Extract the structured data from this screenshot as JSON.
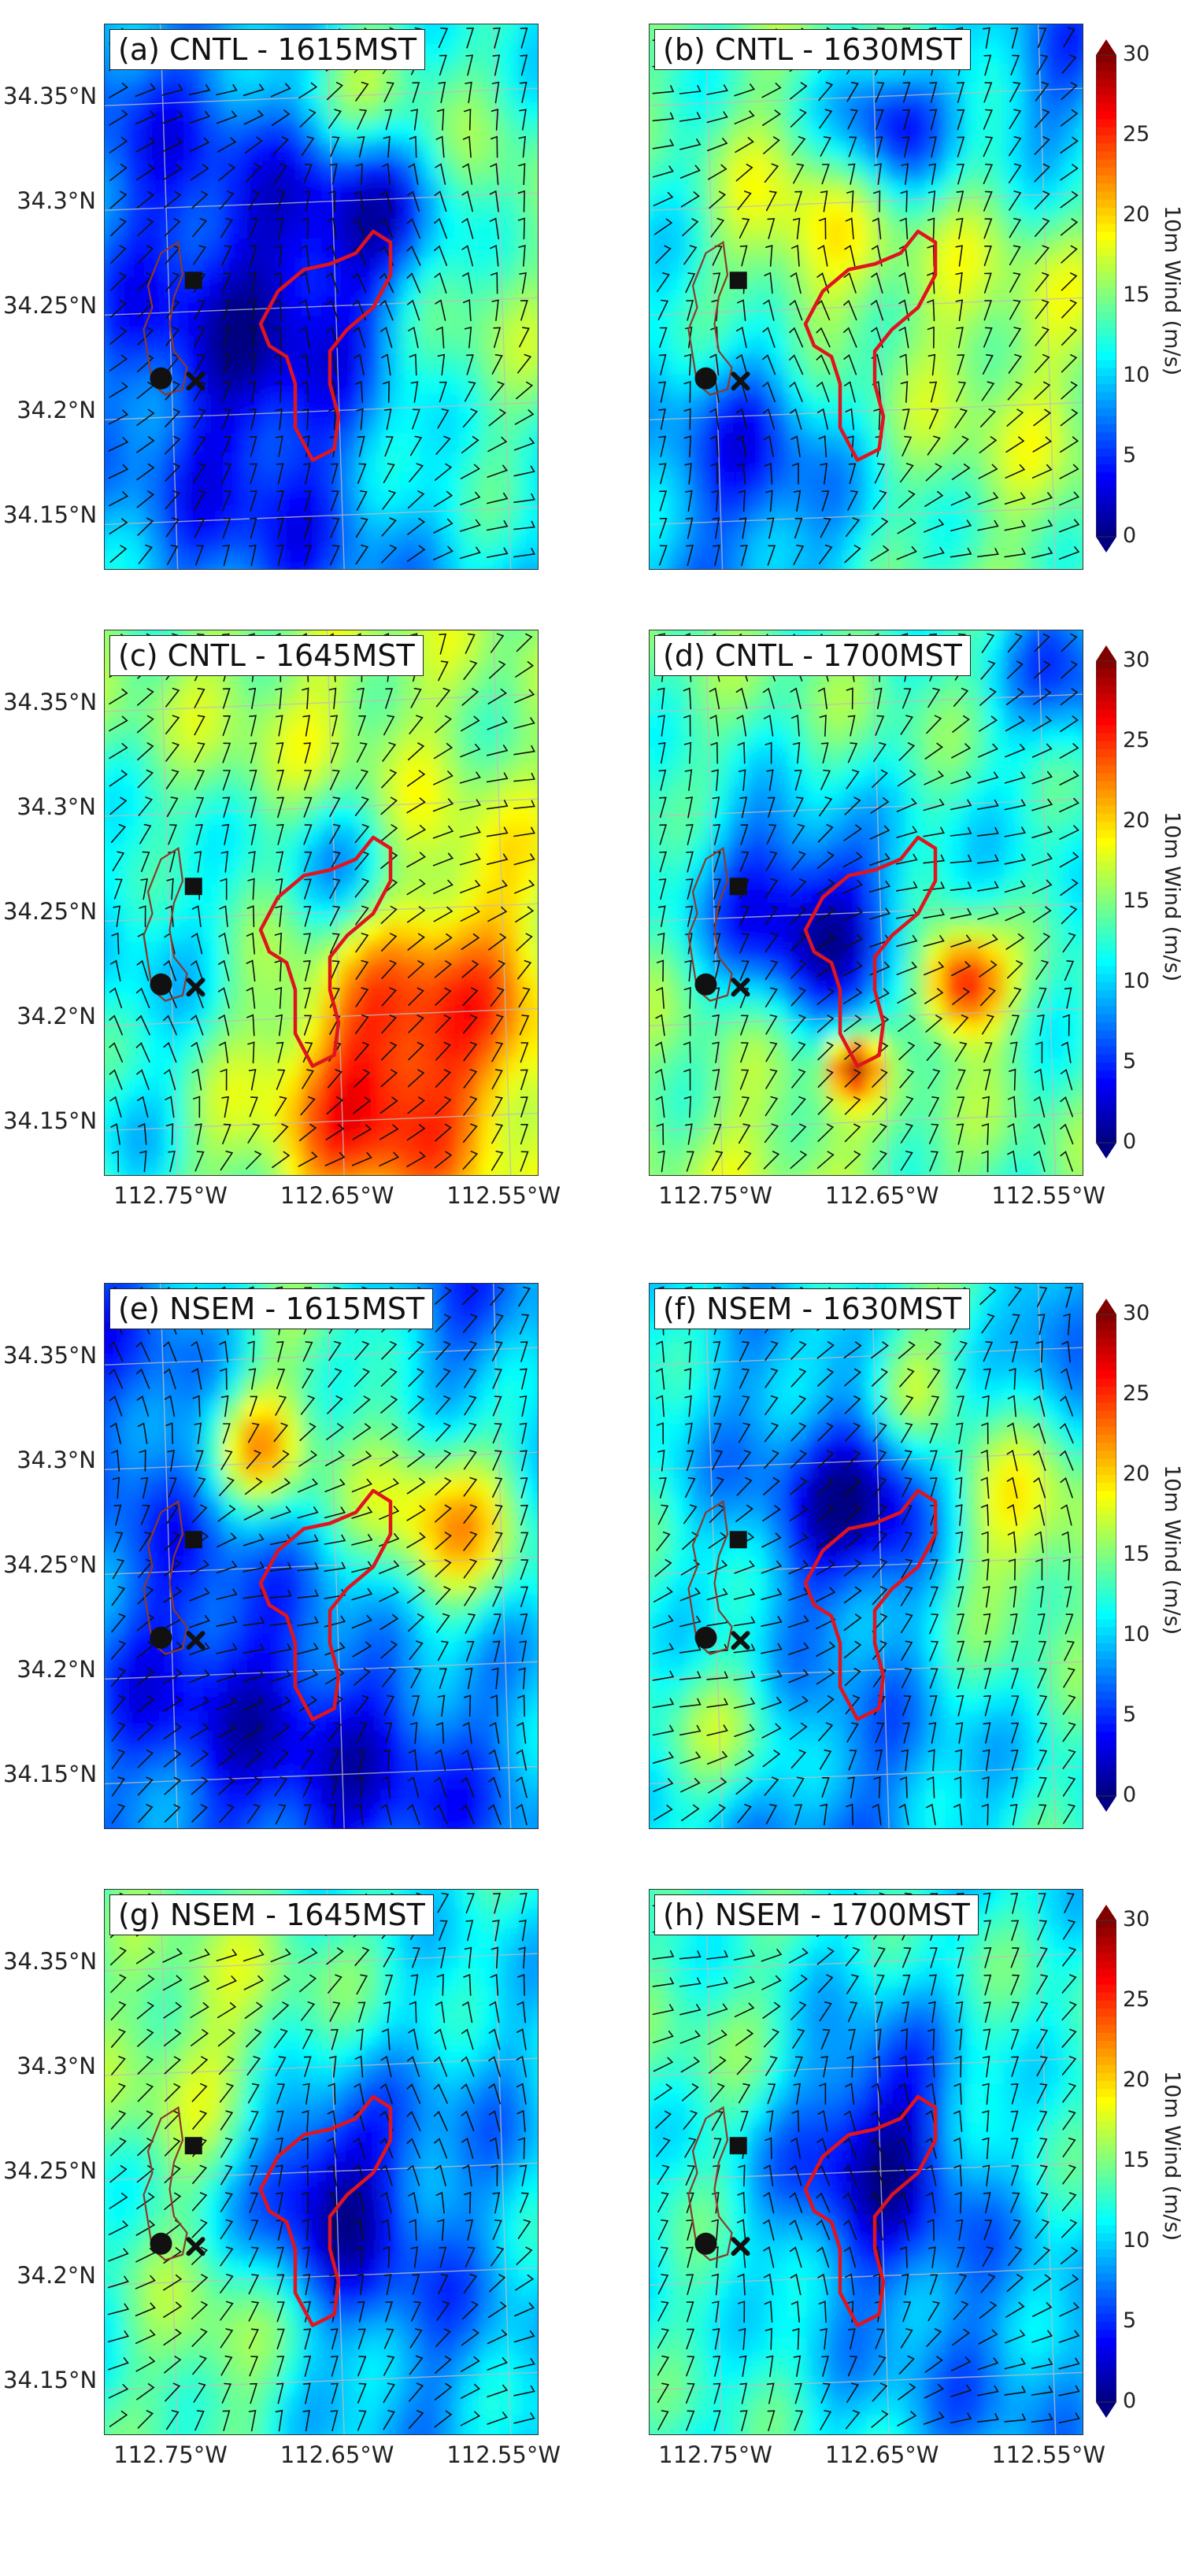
{
  "panels": [
    {
      "title": "(a) CNTL - 1615MST",
      "variant": 0
    },
    {
      "title": "(b) CNTL - 1630MST",
      "variant": 1
    },
    {
      "title": "(c) CNTL -  1645MST",
      "variant": 2
    },
    {
      "title": "(d) CNTL - 1700MST",
      "variant": 3
    },
    {
      "title": "(e) NSEM - 1615MST",
      "variant": 4
    },
    {
      "title": "(f) NSEM - 1630MST",
      "variant": 5
    },
    {
      "title": "(g) NSEM -  1645MST",
      "variant": 6
    },
    {
      "title": "(h) NSEM - 1700MST",
      "variant": 7
    }
  ],
  "lat_labels": [
    "34.35°N",
    "34.3°N",
    "34.25°N",
    "34.2°N",
    "34.15°N"
  ],
  "lat_values": [
    34.35,
    34.3,
    34.25,
    34.2,
    34.15
  ],
  "lon_labels": [
    "112.75°W",
    "112.65°W",
    "112.55°W"
  ],
  "lon_values": [
    -112.75,
    -112.65,
    -112.55
  ],
  "colorbar": {
    "label": "10m Wind (m/s)",
    "ticks": [
      "30",
      "25",
      "20",
      "15",
      "10",
      "5",
      "0"
    ],
    "tick_values": [
      30,
      25,
      20,
      15,
      10,
      5,
      0
    ],
    "range": [
      0,
      30
    ],
    "colormap": "jet",
    "extend": "both"
  },
  "markers": {
    "fire_perimeter_color": "#e0141e",
    "town_boundary_color": "#8a3a2a",
    "marker_color": "#111111"
  }
}
